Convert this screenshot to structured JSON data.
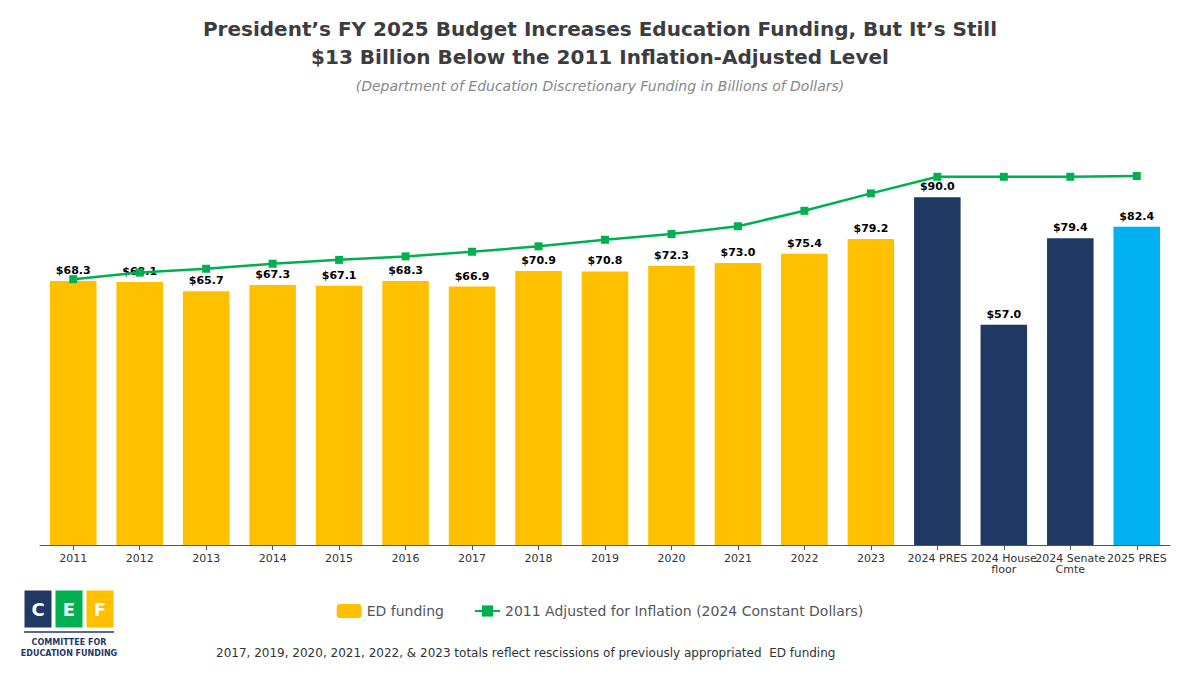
{
  "chart_data": {
    "type": "bar",
    "title": "President’s FY 2025 Budget Increases Education Funding, But It’s Still\n$13 Billion Below the 2011 Inflation-Adjusted Level",
    "subtitle": "(Department of Education Discretionary Funding in Billions of Dollars)",
    "categories": [
      "2011",
      "2012",
      "2013",
      "2014",
      "2015",
      "2016",
      "2017",
      "2018",
      "2019",
      "2020",
      "2021",
      "2022",
      "2023",
      "2024 PRES",
      "2024 House\nfloor",
      "2024 Senate\nCmte",
      "2025 PRES"
    ],
    "series": [
      {
        "name": "ED funding",
        "type": "bar",
        "color": "#FFC000",
        "colors": [
          "#FFC000",
          "#FFC000",
          "#FFC000",
          "#FFC000",
          "#FFC000",
          "#FFC000",
          "#FFC000",
          "#FFC000",
          "#FFC000",
          "#FFC000",
          "#FFC000",
          "#FFC000",
          "#FFC000",
          "#1F3864",
          "#1F3864",
          "#1F3864",
          "#00B0F0"
        ],
        "values": [
          68.3,
          68.1,
          65.7,
          67.3,
          67.1,
          68.3,
          66.9,
          70.9,
          70.8,
          72.3,
          73.0,
          75.4,
          79.2,
          90.0,
          57.0,
          79.4,
          82.4
        ],
        "value_labels": [
          "$68.3",
          "$68.1",
          "$65.7",
          "$67.3",
          "$67.1",
          "$68.3",
          "$66.9",
          "$70.9",
          "$70.8",
          "$72.3",
          "$73.0",
          "$75.4",
          "$79.2",
          "$90.0",
          "$57.0",
          "$79.4",
          "$82.4"
        ],
        "data_labels": true
      },
      {
        "name": "2011 Adjusted for Inflation (2024 Constant Dollars)",
        "type": "line",
        "color": "#00B050",
        "marker": "square",
        "values": [
          68.8,
          70.5,
          71.5,
          72.8,
          73.8,
          74.7,
          75.9,
          77.3,
          79.0,
          80.5,
          82.5,
          86.5,
          91.0,
          95.3,
          95.3,
          95.3,
          95.5
        ]
      }
    ],
    "ylim": [
      0,
      110
    ],
    "grid": false,
    "legend": "lower center",
    "tick_labels": "x",
    "annotations": [
      {
        "text": "2017, 2019, 2020, 2021, 2022, & 2023 totals reflect rescissions of previously appropriated  ED funding",
        "color": "#333333"
      },
      {
        "text": "C",
        "color": "#1F3864"
      },
      {
        "text": "E",
        "color": "#00B050"
      },
      {
        "text": "F",
        "color": "#FFC000"
      },
      {
        "text": "COMMITTEE FOR",
        "color": "#1F3864"
      },
      {
        "text": "EDUCATION FUNDING",
        "color": "#1F3864"
      }
    ]
  }
}
